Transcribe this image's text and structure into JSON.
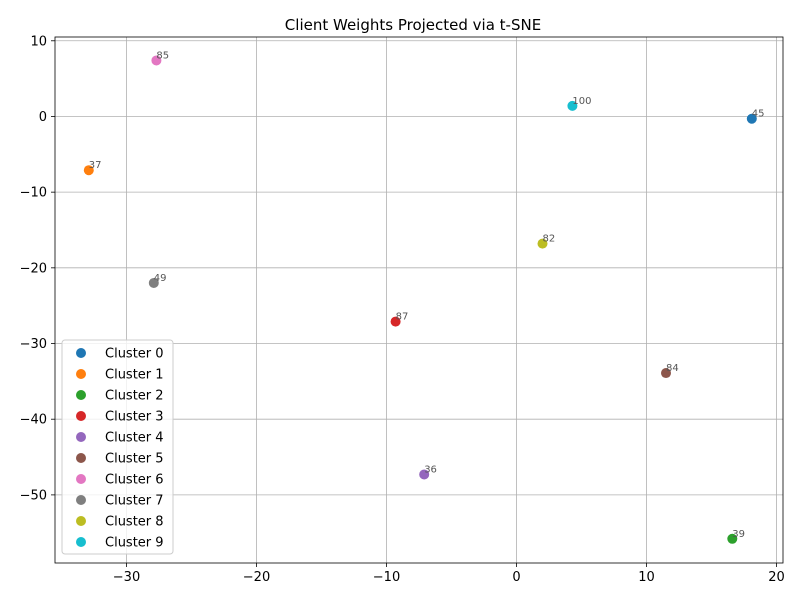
{
  "chart_data": {
    "type": "scatter",
    "title": "Client Weights Projected via t-SNE",
    "xlabel": "",
    "ylabel": "",
    "xlim": [
      -35.5,
      20.5
    ],
    "ylim": [
      -59,
      10.5
    ],
    "xticks": [
      -30,
      -20,
      -10,
      0,
      10,
      20
    ],
    "yticks": [
      10,
      0,
      -10,
      -20,
      -30,
      -40,
      -50
    ],
    "xtick_labels": [
      "−30",
      "−20",
      "−10",
      "0",
      "10",
      "20"
    ],
    "ytick_labels": [
      "10",
      "0",
      "−10",
      "−20",
      "−30",
      "−40",
      "−50"
    ],
    "grid": true,
    "legend_position": "lower-left",
    "series": [
      {
        "name": "Cluster 0",
        "color": "#1f77b4",
        "x": [
          18.1
        ],
        "y": [
          -0.3
        ],
        "labels": [
          "45"
        ]
      },
      {
        "name": "Cluster 1",
        "color": "#ff7f0e",
        "x": [
          -32.9
        ],
        "y": [
          -7.1
        ],
        "labels": [
          "37"
        ]
      },
      {
        "name": "Cluster 2",
        "color": "#2ca02c",
        "x": [
          16.6
        ],
        "y": [
          -55.8
        ],
        "labels": [
          "39"
        ]
      },
      {
        "name": "Cluster 3",
        "color": "#d62728",
        "x": [
          -9.3
        ],
        "y": [
          -27.1
        ],
        "labels": [
          "87"
        ]
      },
      {
        "name": "Cluster 4",
        "color": "#9467bd",
        "x": [
          -7.1
        ],
        "y": [
          -47.3
        ],
        "labels": [
          "36"
        ]
      },
      {
        "name": "Cluster 5",
        "color": "#8c564b",
        "x": [
          11.5
        ],
        "y": [
          -33.9
        ],
        "labels": [
          "84"
        ]
      },
      {
        "name": "Cluster 6",
        "color": "#e377c2",
        "x": [
          -27.7
        ],
        "y": [
          7.4
        ],
        "labels": [
          "85"
        ]
      },
      {
        "name": "Cluster 7",
        "color": "#7f7f7f",
        "x": [
          -27.9
        ],
        "y": [
          -22.0
        ],
        "labels": [
          "49"
        ]
      },
      {
        "name": "Cluster 8",
        "color": "#bcbd22",
        "x": [
          2.0
        ],
        "y": [
          -16.8
        ],
        "labels": [
          "82"
        ]
      },
      {
        "name": "Cluster 9",
        "color": "#17becf",
        "x": [
          4.3
        ],
        "y": [
          1.4
        ],
        "labels": [
          "100"
        ]
      }
    ]
  }
}
